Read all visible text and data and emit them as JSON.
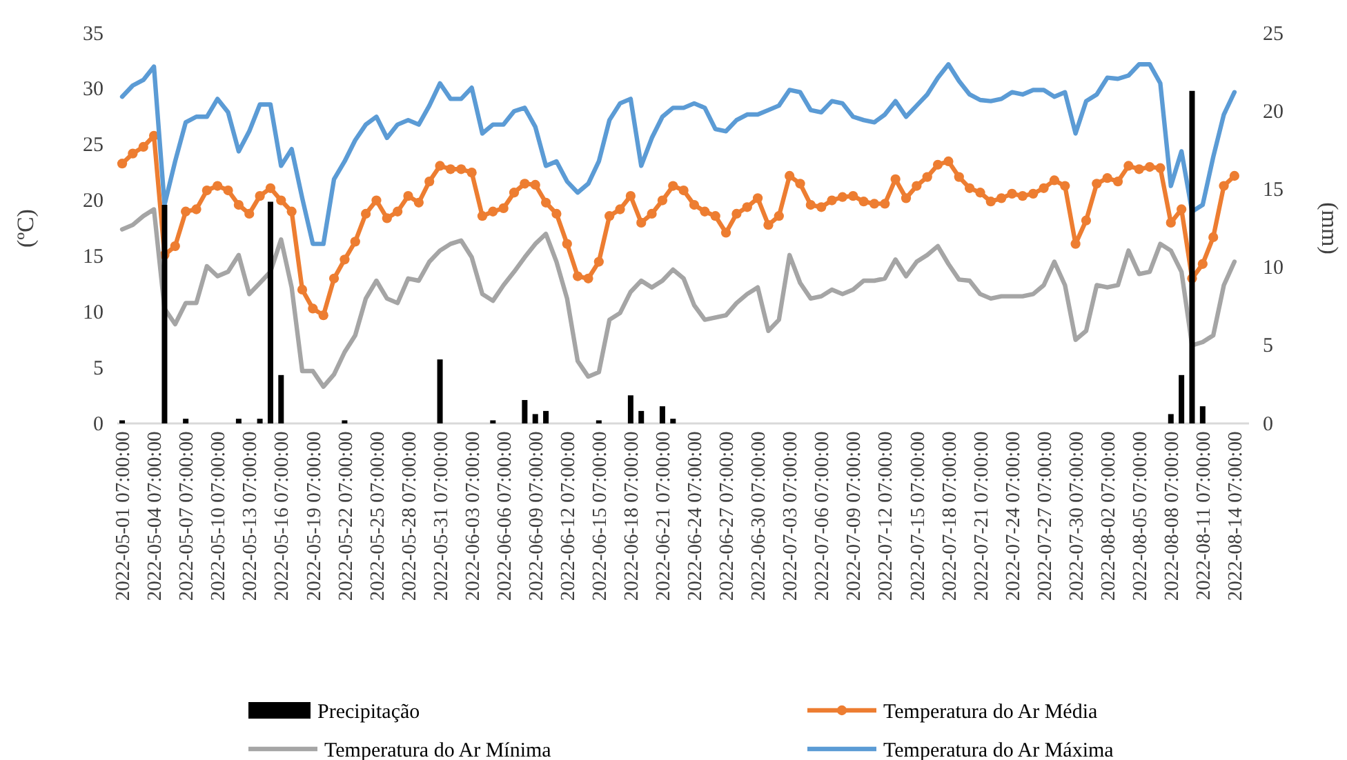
{
  "chart_data": {
    "type": "line",
    "ylabel": "(ºC)",
    "y2label": "(mm)",
    "x": [
      "2022-05-01T07:00",
      "2022-05-02T07:00",
      "2022-05-03T07:00",
      "2022-05-04T07:00",
      "2022-05-05T07:00",
      "2022-05-06T07:00",
      "2022-05-07T07:00",
      "2022-05-08T07:00",
      "2022-05-09T07:00",
      "2022-05-10T07:00",
      "2022-05-11T07:00",
      "2022-05-12T07:00",
      "2022-05-13T07:00",
      "2022-05-14T07:00",
      "2022-05-15T07:00",
      "2022-05-16T07:00",
      "2022-05-17T07:00",
      "2022-05-18T07:00",
      "2022-05-19T07:00",
      "2022-05-20T07:00",
      "2022-05-21T07:00",
      "2022-05-22T07:00",
      "2022-05-23T07:00",
      "2022-05-24T07:00",
      "2022-05-25T07:00",
      "2022-05-26T07:00",
      "2022-05-27T07:00",
      "2022-05-28T07:00",
      "2022-05-29T07:00",
      "2022-05-30T07:00",
      "2022-05-31T07:00",
      "2022-06-01T07:00",
      "2022-06-02T07:00",
      "2022-06-03T07:00",
      "2022-06-04T07:00",
      "2022-06-05T07:00",
      "2022-06-06T07:00",
      "2022-06-07T07:00",
      "2022-06-08T07:00",
      "2022-06-09T07:00",
      "2022-06-10T07:00",
      "2022-06-11T07:00",
      "2022-06-12T07:00",
      "2022-06-13T07:00",
      "2022-06-14T07:00",
      "2022-06-15T07:00",
      "2022-06-16T07:00",
      "2022-06-17T07:00",
      "2022-06-18T07:00",
      "2022-06-19T07:00",
      "2022-06-20T07:00",
      "2022-06-21T07:00",
      "2022-06-22T07:00",
      "2022-06-23T07:00",
      "2022-06-24T07:00",
      "2022-06-25T07:00",
      "2022-06-26T07:00",
      "2022-06-27T07:00",
      "2022-06-28T07:00",
      "2022-06-29T07:00",
      "2022-06-30T07:00",
      "2022-07-01T07:00",
      "2022-07-02T07:00",
      "2022-07-03T07:00",
      "2022-07-04T07:00",
      "2022-07-05T07:00",
      "2022-07-06T07:00",
      "2022-07-07T07:00",
      "2022-07-08T07:00",
      "2022-07-09T07:00",
      "2022-07-10T07:00",
      "2022-07-11T07:00",
      "2022-07-12T07:00",
      "2022-07-13T07:00",
      "2022-07-14T07:00",
      "2022-07-15T07:00",
      "2022-07-16T07:00",
      "2022-07-17T07:00",
      "2022-07-18T07:00",
      "2022-07-19T07:00",
      "2022-07-20T07:00",
      "2022-07-21T07:00",
      "2022-07-22T07:00",
      "2022-07-23T07:00",
      "2022-07-24T07:00",
      "2022-07-25T07:00",
      "2022-07-26T07:00",
      "2022-07-27T07:00",
      "2022-07-28T07:00",
      "2022-07-29T07:00",
      "2022-07-30T07:00",
      "2022-07-31T07:00",
      "2022-08-01T07:00",
      "2022-08-02T07:00",
      "2022-08-03T07:00",
      "2022-08-04T07:00",
      "2022-08-05T07:00",
      "2022-08-06T07:00",
      "2022-08-07T07:00",
      "2022-08-08T07:00",
      "2022-08-09T07:00",
      "2022-08-10T07:00",
      "2022-08-11T07:00",
      "2022-08-12T07:00",
      "2022-08-13T07:00",
      "2022-08-14T07:00"
    ],
    "xlim": [
      "2022-04-30T20:00",
      "2022-08-15T16:00"
    ],
    "xticks": [
      {
        "value": "2022-05-01T07:00",
        "label": "2022-05-01 07:00:00"
      },
      {
        "value": "2022-05-04T07:00",
        "label": "2022-05-04 07:00:00"
      },
      {
        "value": "2022-05-07T07:00",
        "label": "2022-05-07 07:00:00"
      },
      {
        "value": "2022-05-10T07:00",
        "label": "2022-05-10 07:00:00"
      },
      {
        "value": "2022-05-13T07:00",
        "label": "2022-05-13 07:00:00"
      },
      {
        "value": "2022-05-16T07:00",
        "label": "2022-05-16 07:00:00"
      },
      {
        "value": "2022-05-19T07:00",
        "label": "2022-05-19 07:00:00"
      },
      {
        "value": "2022-05-22T07:00",
        "label": "2022-05-22 07:00:00"
      },
      {
        "value": "2022-05-25T07:00",
        "label": "2022-05-25 07:00:00"
      },
      {
        "value": "2022-05-28T07:00",
        "label": "2022-05-28 07:00:00"
      },
      {
        "value": "2022-05-31T07:00",
        "label": "2022-05-31 07:00:00"
      },
      {
        "value": "2022-06-03T07:00",
        "label": "2022-06-03 07:00:00"
      },
      {
        "value": "2022-06-06T07:00",
        "label": "2022-06-06 07:00:00"
      },
      {
        "value": "2022-06-09T07:00",
        "label": "2022-06-09 07:00:00"
      },
      {
        "value": "2022-06-12T07:00",
        "label": "2022-06-12 07:00:00"
      },
      {
        "value": "2022-06-15T07:00",
        "label": "2022-06-15 07:00:00"
      },
      {
        "value": "2022-06-18T07:00",
        "label": "2022-06-18 07:00:00"
      },
      {
        "value": "2022-06-21T07:00",
        "label": "2022-06-21 07:00:00"
      },
      {
        "value": "2022-06-24T07:00",
        "label": "2022-06-24 07:00:00"
      },
      {
        "value": "2022-06-27T07:00",
        "label": "2022-06-27 07:00:00"
      },
      {
        "value": "2022-06-30T07:00",
        "label": "2022-06-30 07:00:00"
      },
      {
        "value": "2022-07-03T07:00",
        "label": "2022-07-03 07:00:00"
      },
      {
        "value": "2022-07-06T07:00",
        "label": "2022-07-06 07:00:00"
      },
      {
        "value": "2022-07-09T07:00",
        "label": "2022-07-09 07:00:00"
      },
      {
        "value": "2022-07-12T07:00",
        "label": "2022-07-12 07:00:00"
      },
      {
        "value": "2022-07-15T07:00",
        "label": "2022-07-15 07:00:00"
      },
      {
        "value": "2022-07-18T07:00",
        "label": "2022-07-18 07:00:00"
      },
      {
        "value": "2022-07-21T07:00",
        "label": "2022-07-21 07:00:00"
      },
      {
        "value": "2022-07-24T07:00",
        "label": "2022-07-24 07:00:00"
      },
      {
        "value": "2022-07-27T07:00",
        "label": "2022-07-27 07:00:00"
      },
      {
        "value": "2022-07-30T07:00",
        "label": "2022-07-30 07:00:00"
      },
      {
        "value": "2022-08-02T07:00",
        "label": "2022-08-02 07:00:00"
      },
      {
        "value": "2022-08-05T07:00",
        "label": "2022-08-05 07:00:00"
      },
      {
        "value": "2022-08-08T07:00",
        "label": "2022-08-08 07:00:00"
      },
      {
        "value": "2022-08-11T07:00",
        "label": "2022-08-11 07:00:00"
      },
      {
        "value": "2022-08-14T07:00",
        "label": "2022-08-14 07:00:00"
      }
    ],
    "ylim": [
      0,
      35
    ],
    "yticks": [
      0,
      5,
      10,
      15,
      20,
      25,
      30,
      35
    ],
    "y2lim": [
      0,
      25
    ],
    "y2ticks": [
      0,
      5,
      10,
      15,
      20,
      25
    ],
    "grid": false,
    "legend": "bottom",
    "line_style": "solid",
    "series": [
      {
        "name": "Precipitação",
        "type": "bar",
        "axis": "y2",
        "color": "#000000",
        "values": [
          0.2,
          null,
          null,
          null,
          14.0,
          null,
          0.3,
          null,
          null,
          null,
          null,
          0.3,
          null,
          0.3,
          14.2,
          3.1,
          null,
          null,
          null,
          null,
          null,
          0.2,
          null,
          null,
          null,
          null,
          null,
          null,
          null,
          null,
          4.1,
          null,
          null,
          null,
          null,
          0.2,
          null,
          null,
          1.5,
          0.6,
          0.8,
          null,
          null,
          null,
          null,
          0.2,
          null,
          null,
          1.8,
          0.8,
          null,
          1.1,
          0.3,
          null,
          null,
          null,
          null,
          null,
          null,
          null,
          null,
          null,
          null,
          null,
          null,
          null,
          null,
          null,
          null,
          null,
          null,
          null,
          null,
          null,
          null,
          null,
          null,
          null,
          null,
          null,
          null,
          null,
          null,
          null,
          null,
          null,
          null,
          null,
          null,
          null,
          null,
          null,
          null,
          null,
          null,
          null,
          null,
          null,
          null,
          0.6,
          3.1,
          21.3,
          1.1,
          null,
          null,
          null
        ]
      },
      {
        "name": "Temperatura do Ar Média",
        "color": "#ed7d31",
        "marker": "circle",
        "values": [
          23.3,
          24.2,
          24.8,
          25.8,
          15.1,
          15.9,
          19.0,
          19.2,
          20.9,
          21.3,
          20.9,
          19.6,
          18.8,
          20.4,
          21.1,
          20.0,
          19.0,
          12.0,
          10.3,
          9.7,
          13.0,
          14.7,
          16.3,
          18.8,
          20.0,
          18.4,
          19.0,
          20.4,
          19.8,
          21.7,
          23.1,
          22.8,
          22.8,
          22.5,
          18.6,
          19.0,
          19.3,
          20.7,
          21.5,
          21.4,
          19.8,
          18.8,
          16.1,
          13.2,
          13.0,
          14.5,
          18.6,
          19.2,
          20.4,
          18.0,
          18.8,
          20.0,
          21.3,
          20.9,
          19.6,
          19.0,
          18.6,
          17.1,
          18.8,
          19.4,
          20.2,
          17.8,
          18.6,
          22.2,
          21.5,
          19.6,
          19.4,
          20.0,
          20.3,
          20.4,
          19.9,
          19.7,
          19.7,
          21.9,
          20.2,
          21.3,
          22.1,
          23.2,
          23.5,
          22.1,
          21.1,
          20.7,
          19.9,
          20.2,
          20.6,
          20.4,
          20.6,
          21.1,
          21.8,
          21.3,
          16.1,
          18.2,
          21.5,
          22.0,
          21.7,
          23.1,
          22.8,
          23.0,
          22.9,
          18.0,
          19.2,
          13.0,
          14.3,
          16.7,
          21.3,
          22.2
        ]
      },
      {
        "name": "Temperatura do Ar Mínima",
        "color": "#a5a5a5",
        "marker": "none",
        "values": [
          17.4,
          17.8,
          18.6,
          19.2,
          10.3,
          8.9,
          10.8,
          10.8,
          14.1,
          13.2,
          13.6,
          15.1,
          11.6,
          12.6,
          13.6,
          16.5,
          12.2,
          4.7,
          4.7,
          3.3,
          4.4,
          6.4,
          7.9,
          11.2,
          12.8,
          11.2,
          10.8,
          13.0,
          12.8,
          14.5,
          15.5,
          16.1,
          16.4,
          14.9,
          11.6,
          11.0,
          12.4,
          13.6,
          14.9,
          16.1,
          17.0,
          14.5,
          11.2,
          5.6,
          4.2,
          4.6,
          9.3,
          9.9,
          11.8,
          12.8,
          12.2,
          12.8,
          13.8,
          13.0,
          10.6,
          9.3,
          9.5,
          9.7,
          10.8,
          11.6,
          12.2,
          8.3,
          9.3,
          15.1,
          12.6,
          11.2,
          11.4,
          12.0,
          11.6,
          12.0,
          12.8,
          12.8,
          13.0,
          14.7,
          13.2,
          14.5,
          15.1,
          15.9,
          14.3,
          12.9,
          12.8,
          11.6,
          11.2,
          11.4,
          11.4,
          11.4,
          11.6,
          12.4,
          14.5,
          12.4,
          7.5,
          8.3,
          12.4,
          12.2,
          12.4,
          15.5,
          13.4,
          13.6,
          16.1,
          15.5,
          13.6,
          7.0,
          7.3,
          7.9,
          12.4,
          14.5
        ]
      },
      {
        "name": "Temperatura do Ar Máxima",
        "color": "#5b9bd5",
        "marker": "none",
        "values": [
          29.3,
          30.3,
          30.8,
          32.0,
          19.6,
          23.5,
          27.0,
          27.5,
          27.5,
          29.1,
          27.9,
          24.4,
          26.2,
          28.6,
          28.6,
          23.1,
          24.6,
          20.2,
          16.1,
          16.1,
          21.9,
          23.5,
          25.4,
          26.8,
          27.5,
          25.6,
          26.8,
          27.2,
          26.8,
          28.5,
          30.5,
          29.1,
          29.1,
          30.1,
          26.0,
          26.8,
          26.8,
          28.0,
          28.3,
          26.6,
          23.1,
          23.5,
          21.7,
          20.7,
          21.5,
          23.5,
          27.2,
          28.7,
          29.1,
          23.1,
          25.6,
          27.5,
          28.3,
          28.3,
          28.7,
          28.3,
          26.4,
          26.2,
          27.2,
          27.7,
          27.7,
          28.1,
          28.5,
          29.9,
          29.7,
          28.1,
          27.9,
          28.9,
          28.7,
          27.5,
          27.2,
          27.0,
          27.7,
          28.9,
          27.5,
          28.5,
          29.5,
          31.0,
          32.2,
          30.7,
          29.5,
          29.0,
          28.9,
          29.1,
          29.7,
          29.5,
          29.9,
          29.9,
          29.3,
          29.7,
          26.0,
          28.9,
          29.5,
          31.0,
          30.9,
          31.2,
          32.2,
          32.2,
          30.5,
          21.3,
          24.4,
          19.0,
          19.6,
          23.9,
          27.7,
          29.7
        ]
      }
    ]
  }
}
